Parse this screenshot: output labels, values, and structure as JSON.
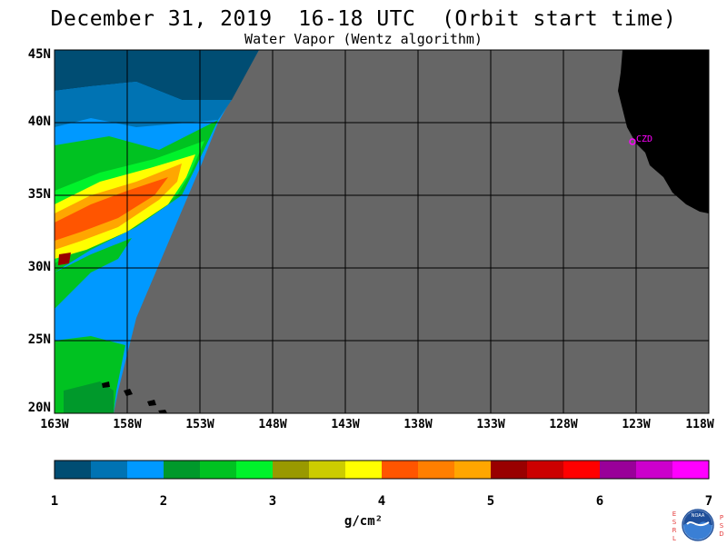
{
  "title": "December 31, 2019  16-18 UTC  (Orbit start time)",
  "subtitle": "Water Vapor (Wentz algorithm)",
  "map": {
    "lat_labels": [
      "45N",
      "40N",
      "35N",
      "30N",
      "25N",
      "20N"
    ],
    "lon_labels": [
      "163W",
      "158W",
      "153W",
      "148W",
      "143W",
      "138W",
      "133W",
      "128W",
      "123W",
      "118W"
    ],
    "no_data_color": "#666666",
    "land_color": "#000000",
    "station": {
      "label": "CZD",
      "color": "#ff00ff"
    }
  },
  "colorbar": {
    "colors": [
      "#004d73",
      "#0073b3",
      "#0099ff",
      "#00992b",
      "#00c221",
      "#00f22b",
      "#999900",
      "#cccc00",
      "#ffff00",
      "#ff5500",
      "#ff7f00",
      "#ffa600",
      "#990000",
      "#cc0000",
      "#ff0000",
      "#990099",
      "#cc00cc",
      "#ff00ff"
    ],
    "tick_labels": [
      "1",
      "2",
      "3",
      "4",
      "5",
      "6",
      "7"
    ],
    "units": "g/cm²"
  },
  "logo": {
    "left_letters": [
      "E",
      "S",
      "R",
      "L"
    ],
    "right_letters": [
      "P",
      "S",
      "D"
    ],
    "text": "NOAA"
  }
}
